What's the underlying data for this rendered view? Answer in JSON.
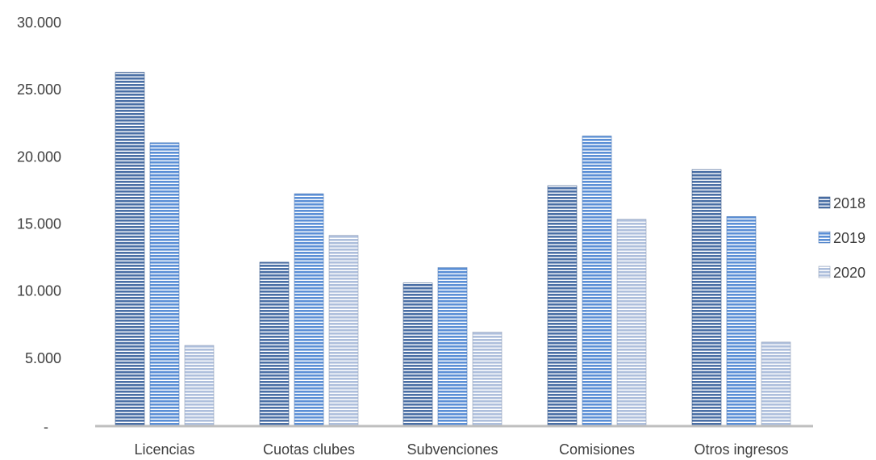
{
  "chart_data": {
    "type": "bar",
    "categories": [
      "Licencias",
      "Cuotas clubes",
      "Subvenciones",
      "Comisiones",
      "Otros ingresos"
    ],
    "series": [
      {
        "name": "2018",
        "values": [
          26300,
          12150,
          10600,
          17850,
          19050
        ],
        "color": "#4a6fa5"
      },
      {
        "name": "2019",
        "values": [
          21050,
          17250,
          11750,
          21550,
          15550
        ],
        "color": "#5b8fd6"
      },
      {
        "name": "2020",
        "values": [
          5950,
          14150,
          6950,
          15350,
          6200
        ],
        "color": "#aebfdc"
      }
    ],
    "y_ticks": [
      {
        "value": 0,
        "label": "-"
      },
      {
        "value": 5000,
        "label": "5.000"
      },
      {
        "value": 10000,
        "label": "10.000"
      },
      {
        "value": 15000,
        "label": "15.000"
      },
      {
        "value": 20000,
        "label": "20.000"
      },
      {
        "value": 25000,
        "label": "25.000"
      },
      {
        "value": 30000,
        "label": "30.000"
      }
    ],
    "ylim": [
      0,
      30000
    ],
    "grid": false,
    "legend_position": "right",
    "bar_pattern": "horizontal-stripes",
    "axis_color": "#bfbfbf"
  }
}
